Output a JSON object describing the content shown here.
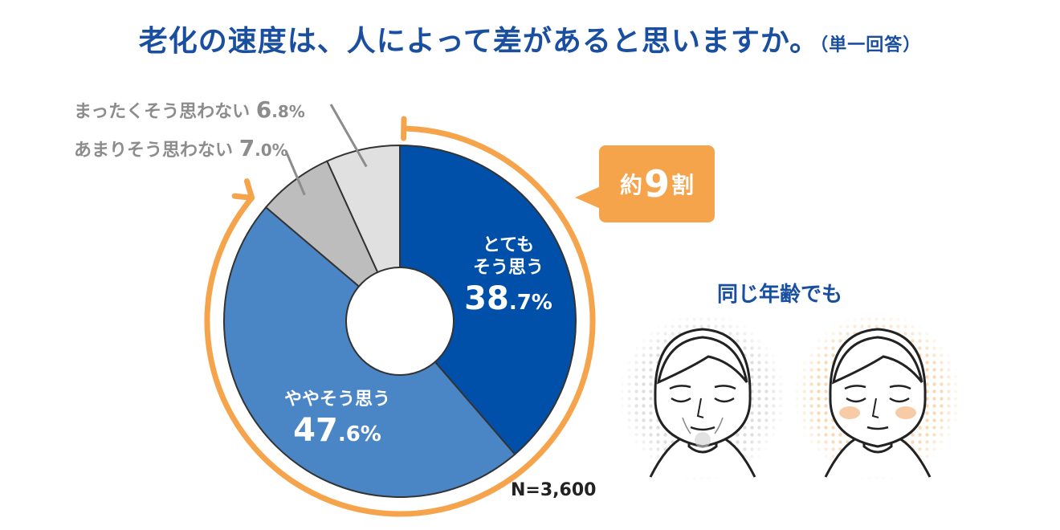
{
  "title": {
    "main": "老化の速度は、人によって差があると思いますか。",
    "note": "（単一回答）"
  },
  "chart_data": {
    "type": "pie",
    "variant": "donut",
    "slices": [
      {
        "label_lines": [
          "とても",
          "そう思う"
        ],
        "label": "とてもそう思う",
        "value": 38.7,
        "pct_int": "38",
        "pct_dec": ".7%",
        "color": "#0050aa"
      },
      {
        "label_lines": [
          "ややそう思う"
        ],
        "label": "ややそう思う",
        "value": 47.6,
        "pct_int": "47",
        "pct_dec": ".6%",
        "color": "#4a85c6"
      },
      {
        "label": "あまりそう思わない",
        "value": 7.0,
        "pct_int": "7",
        "pct_dec": ".0%",
        "color": "#bdbdbd"
      },
      {
        "label": "まったくそう思わない",
        "value": 6.8,
        "pct_int": "6",
        "pct_dec": ".8%",
        "color": "#e0e0e0"
      }
    ],
    "sample_size": "N=3,600",
    "callout": {
      "prefix": "約",
      "number": "9",
      "suffix": "割"
    }
  },
  "faces": {
    "caption": "同じ年齢でも",
    "left_face": "older-looking-face-icon",
    "right_face": "younger-looking-face-icon"
  },
  "colors": {
    "title": "#1a4fa0",
    "accent_orange": "#f6a44c",
    "outline": "#333333"
  }
}
